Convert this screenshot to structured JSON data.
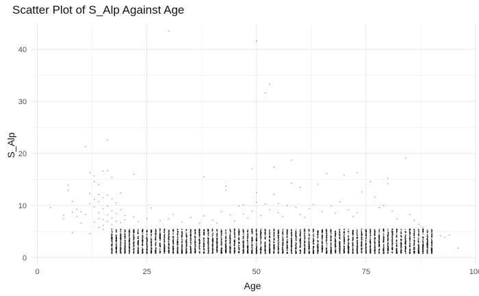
{
  "chart_data": {
    "type": "scatter",
    "title": "Scatter Plot of S_Alp Against Age",
    "xlabel": "Age",
    "ylabel": "S_Alp",
    "xlim": [
      -1.5,
      100
    ],
    "ylim": [
      -1.2,
      45
    ],
    "x_ticks": [
      0,
      25,
      50,
      75,
      100
    ],
    "y_ticks": [
      0,
      10,
      20,
      30,
      40
    ],
    "grid": true,
    "legend": "none",
    "point_color": "#000000",
    "dense_band": {
      "x_range": [
        17,
        90
      ],
      "x_step": 1,
      "y_min": 0.8,
      "y_max": 5.5,
      "points_per_age": 60
    },
    "points": [
      [
        3,
        9.6
      ],
      [
        6,
        8.1
      ],
      [
        6,
        7.4
      ],
      [
        7,
        13.9
      ],
      [
        7,
        12.9
      ],
      [
        8,
        10.8
      ],
      [
        8,
        8.7
      ],
      [
        8,
        4.8
      ],
      [
        9,
        7.9
      ],
      [
        9,
        9.3
      ],
      [
        10,
        8.8
      ],
      [
        10,
        6.6
      ],
      [
        11,
        21.3
      ],
      [
        11,
        8.3
      ],
      [
        12,
        16.3
      ],
      [
        12,
        12.3
      ],
      [
        12,
        10.4
      ],
      [
        12,
        4.6
      ],
      [
        13,
        9.7
      ],
      [
        13,
        11.2
      ],
      [
        13,
        14.6
      ],
      [
        13,
        15.7
      ],
      [
        13,
        6.8
      ],
      [
        14,
        14.0
      ],
      [
        14,
        12.1
      ],
      [
        14,
        10.7
      ],
      [
        14,
        8.6
      ],
      [
        14,
        5.8
      ],
      [
        14,
        7.5
      ],
      [
        15,
        16.6
      ],
      [
        15,
        11.5
      ],
      [
        15,
        9.4
      ],
      [
        15,
        7.3
      ],
      [
        15,
        6.2
      ],
      [
        15,
        5.4
      ],
      [
        16,
        22.6
      ],
      [
        16,
        16.7
      ],
      [
        16,
        12.0
      ],
      [
        16,
        9.9
      ],
      [
        16,
        8.2
      ],
      [
        16,
        6.9
      ],
      [
        17,
        15.4
      ],
      [
        17,
        11.3
      ],
      [
        17,
        9.0
      ],
      [
        17,
        7.6
      ],
      [
        17,
        6.3
      ],
      [
        18,
        10.5
      ],
      [
        18,
        8.4
      ],
      [
        18,
        7.0
      ],
      [
        19,
        12.4
      ],
      [
        19,
        9.2
      ],
      [
        19,
        6.7
      ],
      [
        20,
        8.1
      ],
      [
        20,
        7.2
      ],
      [
        22,
        16.0
      ],
      [
        22,
        7.8
      ],
      [
        23,
        6.9
      ],
      [
        25,
        7.5
      ],
      [
        26,
        9.5
      ],
      [
        28,
        7.1
      ],
      [
        30,
        43.5
      ],
      [
        30,
        7.4
      ],
      [
        31,
        8.3
      ],
      [
        33,
        6.8
      ],
      [
        35,
        7.7
      ],
      [
        37,
        6.6
      ],
      [
        38,
        15.5
      ],
      [
        38,
        8.0
      ],
      [
        40,
        7.2
      ],
      [
        41,
        6.6
      ],
      [
        42,
        8.8
      ],
      [
        43,
        12.9
      ],
      [
        43,
        13.7
      ],
      [
        44,
        8.2
      ],
      [
        45,
        7.0
      ],
      [
        46,
        9.9
      ],
      [
        47,
        8.4
      ],
      [
        47,
        10.1
      ],
      [
        48,
        7.6
      ],
      [
        49,
        17.0
      ],
      [
        49,
        8.9
      ],
      [
        50,
        41.6
      ],
      [
        50,
        10.6
      ],
      [
        50,
        12.5
      ],
      [
        51,
        8.1
      ],
      [
        52,
        31.6
      ],
      [
        52,
        10.3
      ],
      [
        53,
        33.3
      ],
      [
        53,
        9.2
      ],
      [
        54,
        17.4
      ],
      [
        54,
        12.1
      ],
      [
        55,
        8.6
      ],
      [
        55,
        10.4
      ],
      [
        56,
        7.9
      ],
      [
        57,
        10.0
      ],
      [
        58,
        14.3
      ],
      [
        58,
        18.7
      ],
      [
        59,
        9.6
      ],
      [
        60,
        13.5
      ],
      [
        60,
        8.3
      ],
      [
        61,
        7.7
      ],
      [
        62,
        9.4
      ],
      [
        63,
        10.2
      ],
      [
        64,
        14.1
      ],
      [
        65,
        8.8
      ],
      [
        66,
        16.1
      ],
      [
        67,
        9.9
      ],
      [
        68,
        8.5
      ],
      [
        69,
        10.7
      ],
      [
        70,
        15.8
      ],
      [
        71,
        9.2
      ],
      [
        72,
        7.9
      ],
      [
        73,
        16.3
      ],
      [
        73,
        8.6
      ],
      [
        74,
        12.6
      ],
      [
        76,
        14.6
      ],
      [
        77,
        11.6
      ],
      [
        78,
        9.6
      ],
      [
        79,
        10.0
      ],
      [
        80,
        14.2
      ],
      [
        80,
        15.2
      ],
      [
        81,
        8.9
      ],
      [
        82,
        7.4
      ],
      [
        84,
        19.1
      ],
      [
        85,
        8.3
      ],
      [
        86,
        7.2
      ],
      [
        87,
        6.4
      ],
      [
        88,
        5.8
      ],
      [
        90,
        5.2
      ],
      [
        92,
        4.2
      ],
      [
        93,
        3.9
      ],
      [
        94,
        4.3
      ],
      [
        96,
        1.8
      ]
    ]
  }
}
